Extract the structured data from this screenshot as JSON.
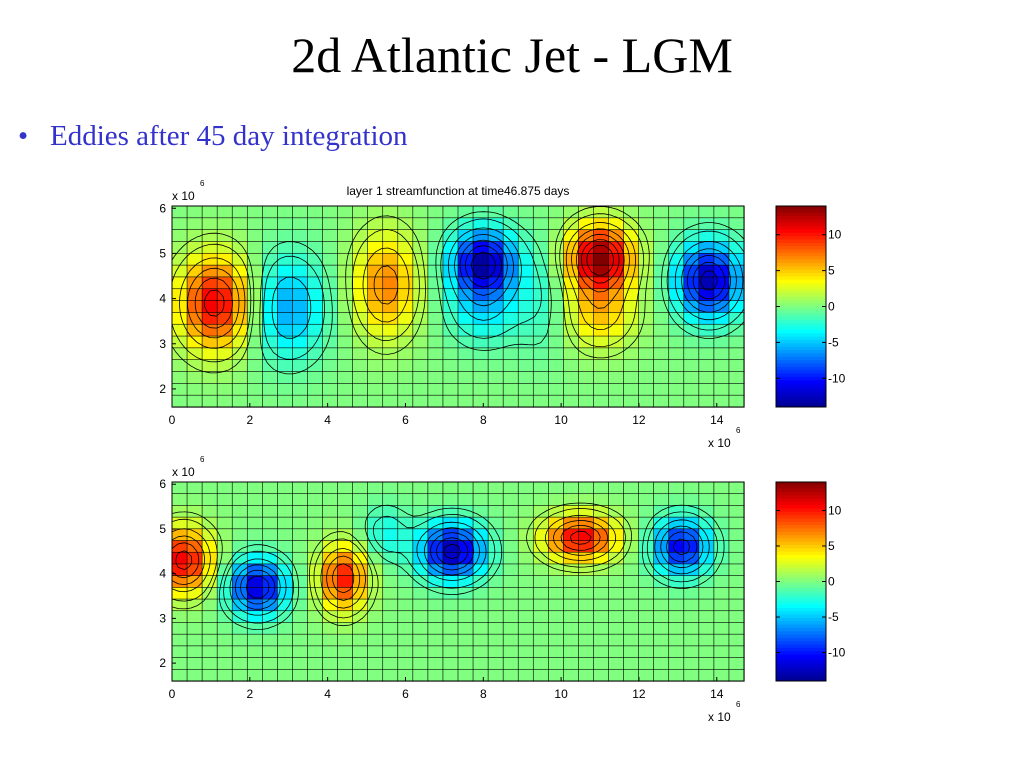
{
  "slide": {
    "title": "2d Atlantic Jet - LGM",
    "bullet": "Eddies after 45 day integration",
    "bullet_color": "#3333cc"
  },
  "colormap": [
    "#00008f",
    "#0000ff",
    "#0080ff",
    "#00ffff",
    "#80ff80",
    "#ffff00",
    "#ff8000",
    "#ff0000",
    "#800000"
  ],
  "chart_data": [
    {
      "type": "heatmap",
      "title": "layer 1 streamfunction at time46.875 days",
      "xlabel": "",
      "ylabel": "",
      "x_range": [
        0,
        14.7
      ],
      "y_range": [
        1.6,
        6.05
      ],
      "x_ticks": [
        "0",
        "2",
        "4",
        "6",
        "8",
        "10",
        "12",
        "14"
      ],
      "y_ticks": [
        "2",
        "3",
        "4",
        "5",
        "6"
      ],
      "x_multiplier": "x 10",
      "x_multiplier_exp": "6",
      "y_multiplier": "x 10",
      "y_multiplier_exp": "6",
      "colorbar": {
        "range": [
          -14,
          14
        ],
        "ticks": [
          "-10",
          "-5",
          "0",
          "5",
          "10"
        ]
      },
      "grid": true,
      "contours": true,
      "features": [
        {
          "x": 1.1,
          "y": 3.9,
          "value": 11,
          "sx": 0.9,
          "sy": 1.0
        },
        {
          "x": 3.0,
          "y": 3.8,
          "value": -6,
          "sx": 0.9,
          "sy": 1.1
        },
        {
          "x": 5.5,
          "y": 4.3,
          "value": 7,
          "sx": 0.8,
          "sy": 1.1
        },
        {
          "x": 8.0,
          "y": 4.8,
          "value": -13,
          "sx": 0.8,
          "sy": 0.7
        },
        {
          "x": 8.0,
          "y": 3.8,
          "value": -4,
          "sx": 0.9,
          "sy": 0.8
        },
        {
          "x": 11.0,
          "y": 4.9,
          "value": 14,
          "sx": 0.8,
          "sy": 0.7
        },
        {
          "x": 11.0,
          "y": 3.7,
          "value": 5,
          "sx": 0.9,
          "sy": 0.8
        },
        {
          "x": 13.8,
          "y": 4.4,
          "value": -13,
          "sx": 0.8,
          "sy": 0.8
        },
        {
          "x": 9.5,
          "y": 4.0,
          "value": -2,
          "sx": 0.7,
          "sy": 1.2
        }
      ]
    },
    {
      "type": "heatmap",
      "title": "",
      "xlabel": "",
      "ylabel": "",
      "x_range": [
        0,
        14.7
      ],
      "y_range": [
        1.6,
        6.05
      ],
      "x_ticks": [
        "0",
        "2",
        "4",
        "6",
        "8",
        "10",
        "12",
        "14"
      ],
      "y_ticks": [
        "2",
        "3",
        "4",
        "5",
        "6"
      ],
      "x_multiplier": "x 10",
      "x_multiplier_exp": "6",
      "y_multiplier": "x 10",
      "y_multiplier_exp": "6",
      "colorbar": {
        "range": [
          -14,
          14
        ],
        "ticks": [
          "-10",
          "-5",
          "0",
          "5",
          "10"
        ]
      },
      "grid": true,
      "contours": true,
      "features": [
        {
          "x": 0.3,
          "y": 4.3,
          "value": 11,
          "sx": 0.7,
          "sy": 0.7
        },
        {
          "x": 2.2,
          "y": 3.7,
          "value": -12,
          "sx": 0.7,
          "sy": 0.6
        },
        {
          "x": 4.4,
          "y": 3.9,
          "value": 10,
          "sx": 0.6,
          "sy": 0.7
        },
        {
          "x": 7.2,
          "y": 4.5,
          "value": -13,
          "sx": 0.8,
          "sy": 0.6
        },
        {
          "x": 10.5,
          "y": 4.8,
          "value": 11,
          "sx": 0.9,
          "sy": 0.5
        },
        {
          "x": 13.1,
          "y": 4.6,
          "value": -11,
          "sx": 0.7,
          "sy": 0.6
        },
        {
          "x": 5.5,
          "y": 4.9,
          "value": -3,
          "sx": 0.6,
          "sy": 0.6
        }
      ]
    }
  ]
}
